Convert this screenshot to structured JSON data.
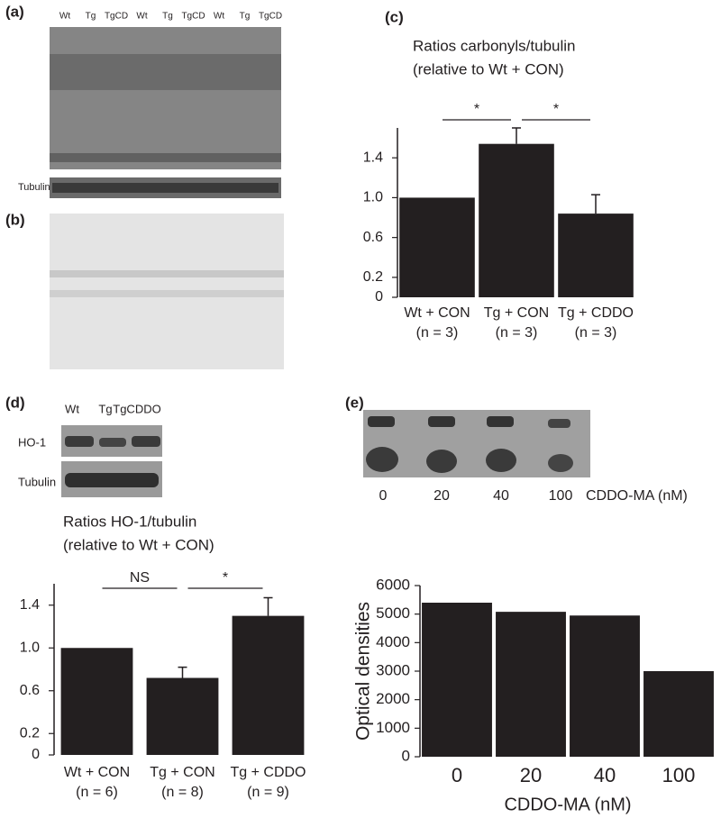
{
  "panels": {
    "a": "(a)",
    "b": "(b)",
    "c": "(c)",
    "d": "(d)",
    "e": "(e)"
  },
  "blot_a": {
    "lanes": [
      "Wt",
      "Tg",
      "TgCD",
      "Wt",
      "Tg",
      "TgCD",
      "Wt",
      "Tg",
      "TgCD"
    ],
    "row_label": "Tubulin"
  },
  "blot_d": {
    "lanes": [
      "Wt",
      "Tg",
      "TgCDDO"
    ],
    "row_labels": [
      "HO-1",
      "Tubulin"
    ]
  },
  "blot_e": {
    "lanes": [
      "0",
      "20",
      "40",
      "100"
    ],
    "unit_label": "CDDO-MA (nM)"
  },
  "chart_data": [
    {
      "type": "bar",
      "title": "Ratios carbonyls/tubulin",
      "subtitle": "(relative to Wt + CON)",
      "categories": [
        "Wt + CON",
        "Tg + CON",
        "Tg + CDDO"
      ],
      "n_labels": [
        "(n = 3)",
        "(n = 3)",
        "(n = 3)"
      ],
      "values": [
        1.0,
        1.54,
        0.84
      ],
      "errors": [
        0,
        0.16,
        0.19
      ],
      "color": "#231f20",
      "ylim": [
        0,
        1.7
      ],
      "yticks": [
        0,
        {
          "value": 0.2,
          "label": "0.2"
        },
        {
          "value": 0.6,
          "label": "0.6"
        },
        {
          "value": 1.0,
          "label": "1.0"
        },
        {
          "value": 1.4,
          "label": "1.4"
        }
      ],
      "annotations": [
        "*",
        "*"
      ]
    },
    {
      "type": "bar",
      "title": "Ratios HO-1/tubulin",
      "subtitle": "(relative to Wt + CON)",
      "categories": [
        "Wt + CON",
        "Tg + CON",
        "Tg + CDDO"
      ],
      "n_labels": [
        "(n = 6)",
        "(n = 8)",
        "(n = 9)"
      ],
      "values": [
        1.0,
        0.72,
        1.3
      ],
      "errors": [
        0,
        0.1,
        0.17
      ],
      "color": "#231f20",
      "ylim": [
        0,
        1.6
      ],
      "yticks": [
        0,
        {
          "value": 0.2,
          "label": "0.2"
        },
        {
          "value": 0.6,
          "label": "0.6"
        },
        {
          "value": 1.0,
          "label": "1.0"
        },
        {
          "value": 1.4,
          "label": "1.4"
        }
      ],
      "annotations": [
        "NS",
        "*"
      ]
    },
    {
      "type": "bar",
      "ylabel": "Optical densities",
      "xlabel": "CDDO-MA (nM)",
      "categories": [
        "0",
        "20",
        "40",
        "100"
      ],
      "values": [
        5400,
        5080,
        4950,
        3000
      ],
      "color": "#231f20",
      "ylim": [
        0,
        6000
      ],
      "yticks": [
        0,
        1000,
        2000,
        3000,
        4000,
        5000,
        6000
      ]
    }
  ]
}
